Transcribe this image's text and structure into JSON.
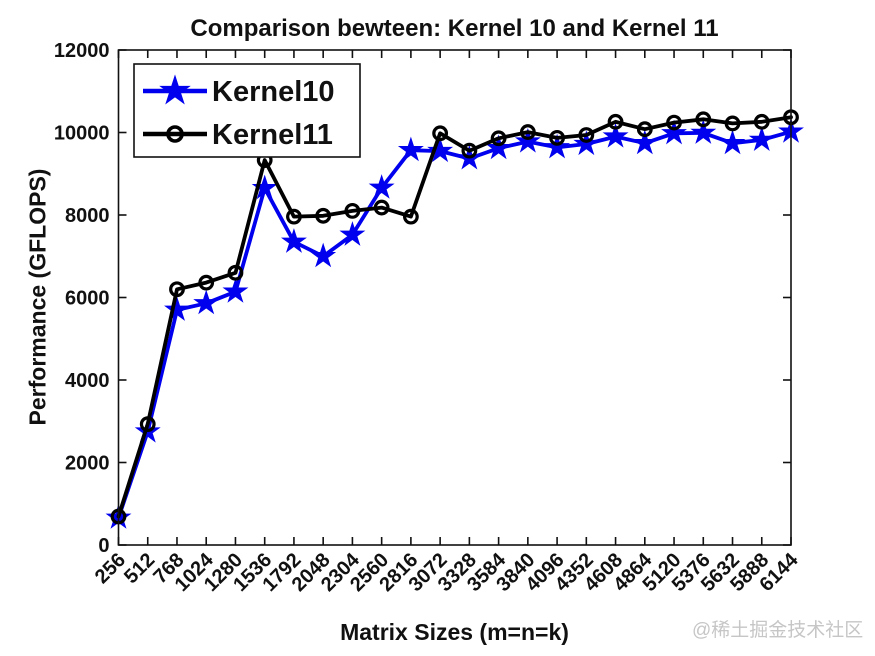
{
  "figure": {
    "watermark": "@稀土掘金技术社区"
  },
  "chart_data": {
    "type": "line",
    "title": "Comparison bewteen: Kernel 10 and Kernel 11",
    "xlabel": "Matrix Sizes (m=n=k)",
    "ylabel": "Performance (GFLOPS)",
    "x": [
      256,
      512,
      768,
      1024,
      1280,
      1536,
      1792,
      2048,
      2304,
      2560,
      2816,
      3072,
      3328,
      3584,
      3840,
      4096,
      4352,
      4608,
      4864,
      5120,
      5376,
      5632,
      5888,
      6144
    ],
    "ylim": [
      0,
      12000
    ],
    "yticks": [
      0,
      2000,
      4000,
      6000,
      8000,
      10000,
      12000
    ],
    "grid": false,
    "legend_position": "top-left",
    "series": [
      {
        "name": "Kernel10",
        "color": "#0000EE",
        "marker": "pentagram",
        "values": [
          660,
          2750,
          5700,
          5860,
          6140,
          8650,
          7350,
          7000,
          7520,
          8660,
          9570,
          9550,
          9370,
          9620,
          9780,
          9640,
          9720,
          9900,
          9740,
          9980,
          9990,
          9740,
          9820,
          10020
        ]
      },
      {
        "name": "Kernel11",
        "color": "#000000",
        "marker": "circle",
        "values": [
          690,
          2930,
          6200,
          6360,
          6600,
          9330,
          7960,
          7980,
          8100,
          8180,
          7960,
          9980,
          9560,
          9860,
          10010,
          9870,
          9940,
          10260,
          10080,
          10240,
          10320,
          10220,
          10260,
          10370
        ]
      }
    ]
  }
}
